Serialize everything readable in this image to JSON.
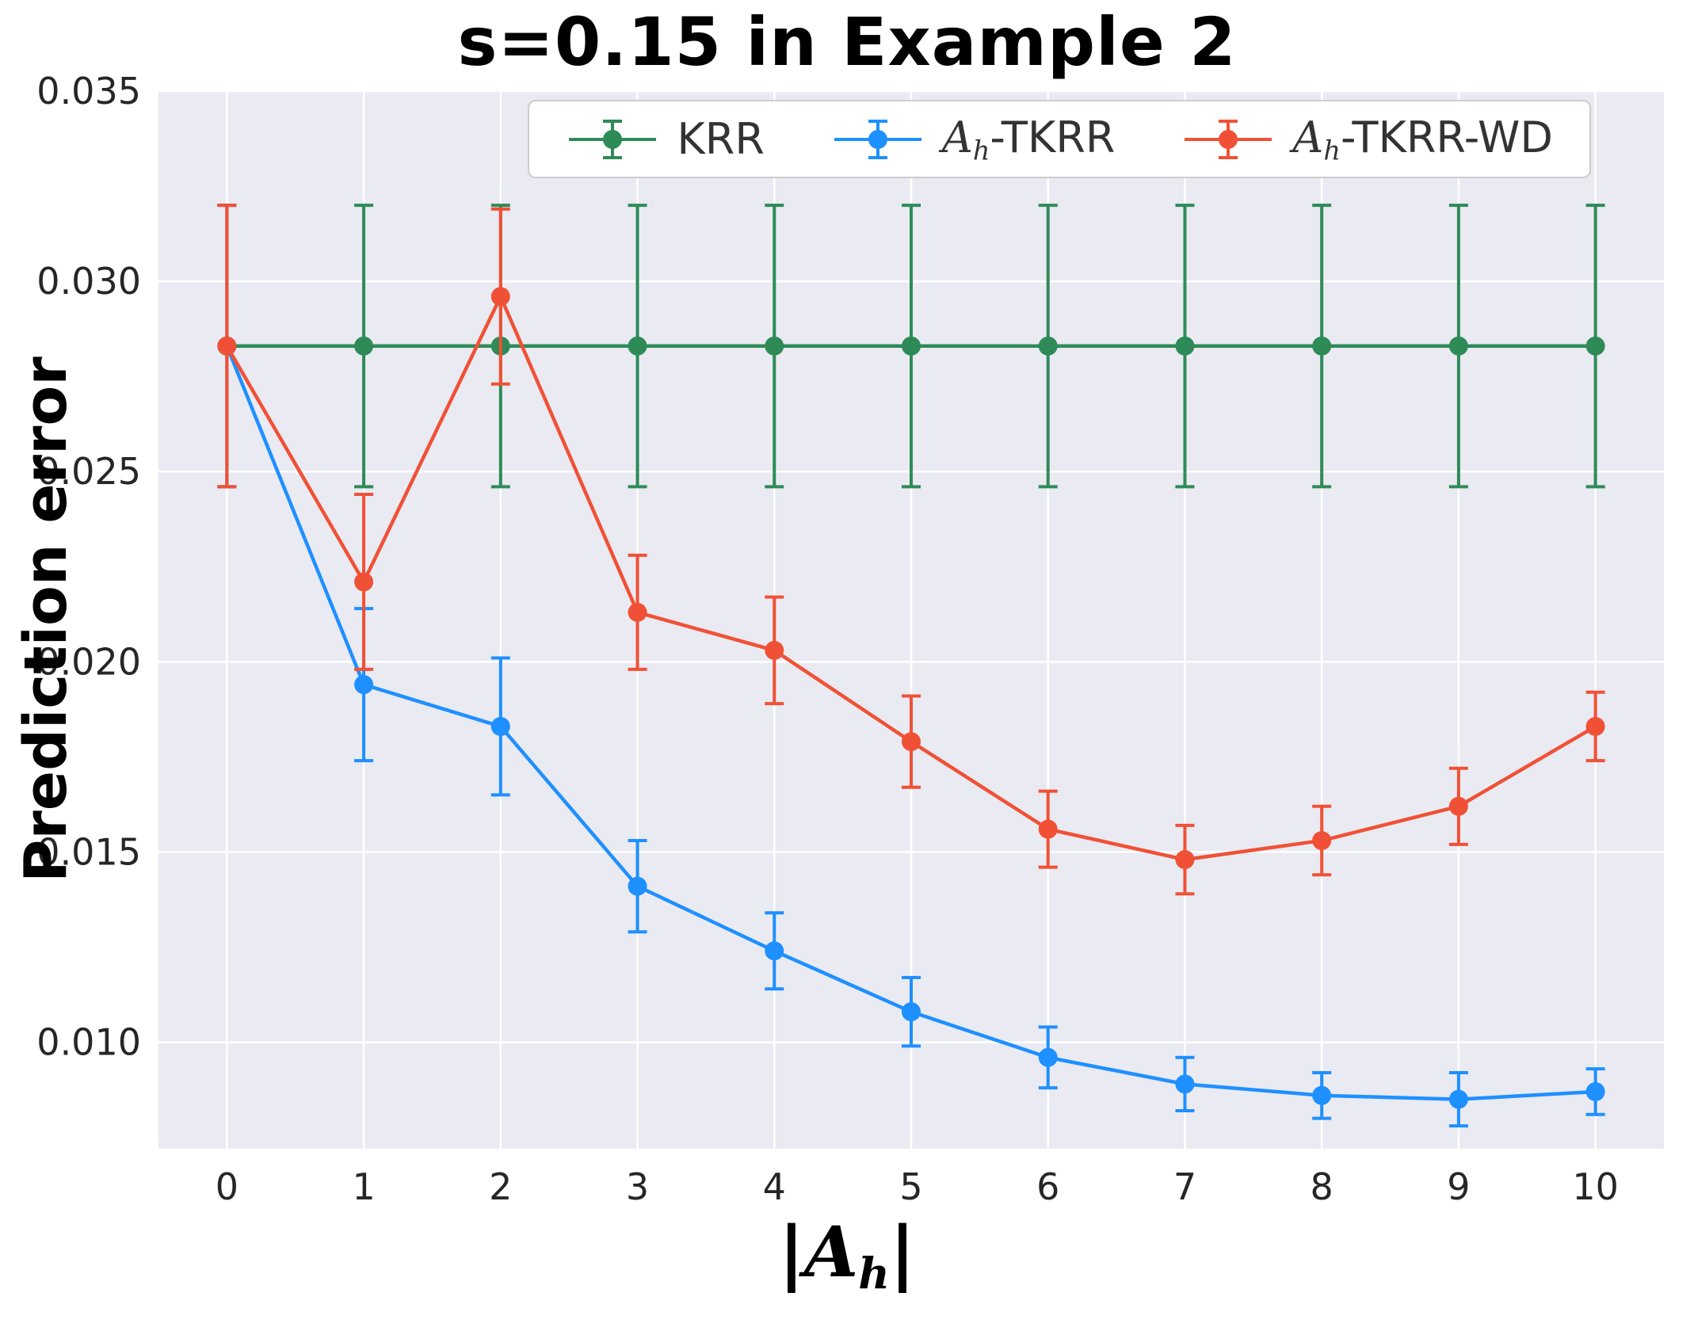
{
  "chart_data": {
    "type": "line",
    "title": "s=0.15 in Example 2",
    "xlabel": "|A_h|",
    "ylabel": "Prediction error",
    "xlabel_parts": {
      "left_bar": "|",
      "script_letter": "A",
      "subscript": "h",
      "right_bar": "|"
    },
    "x": [
      0,
      1,
      2,
      3,
      4,
      5,
      6,
      7,
      8,
      9,
      10
    ],
    "xlim": [
      -0.5,
      10.5
    ],
    "ylim": [
      0.0072,
      0.035
    ],
    "xticks": [
      0,
      1,
      2,
      3,
      4,
      5,
      6,
      7,
      8,
      9,
      10
    ],
    "xtick_labels": [
      "0",
      "1",
      "2",
      "3",
      "4",
      "5",
      "6",
      "7",
      "8",
      "9",
      "10"
    ],
    "yticks": [
      0.01,
      0.015,
      0.02,
      0.025,
      0.03,
      0.035
    ],
    "ytick_labels": [
      "0.010",
      "0.015",
      "0.020",
      "0.025",
      "0.030",
      "0.035"
    ],
    "grid": true,
    "legend_position": "upper right",
    "series": [
      {
        "name": "KRR",
        "color": "#2e8b57",
        "legend": {
          "text": "KRR"
        },
        "values": [
          0.0283,
          0.0283,
          0.0283,
          0.0283,
          0.0283,
          0.0283,
          0.0283,
          0.0283,
          0.0283,
          0.0283,
          0.0283
        ],
        "errors": [
          0.0037,
          0.0037,
          0.0037,
          0.0037,
          0.0037,
          0.0037,
          0.0037,
          0.0037,
          0.0037,
          0.0037,
          0.0037
        ]
      },
      {
        "name": "Ah-TKRR",
        "color": "#1e90ff",
        "legend": {
          "script_letter": "A",
          "subscript": "h",
          "text": "-TKRR"
        },
        "values": [
          0.0283,
          0.0194,
          0.0183,
          0.0141,
          0.0124,
          0.0108,
          0.0096,
          0.0089,
          0.0086,
          0.0085,
          0.0087
        ],
        "errors": [
          0.0037,
          0.002,
          0.0018,
          0.0012,
          0.001,
          0.0009,
          0.0008,
          0.0007,
          0.0006,
          0.0007,
          0.0006
        ]
      },
      {
        "name": "Ah-TKRR-WD",
        "color": "#f05136",
        "legend": {
          "script_letter": "A",
          "subscript": "h",
          "text": "-TKRR-WD"
        },
        "values": [
          0.0283,
          0.0221,
          0.0296,
          0.0213,
          0.0203,
          0.0179,
          0.0156,
          0.0148,
          0.0153,
          0.0162,
          0.0183
        ],
        "errors": [
          0.0037,
          0.0023,
          0.0023,
          0.0015,
          0.0014,
          0.0012,
          0.001,
          0.0009,
          0.0009,
          0.001,
          0.0009
        ]
      }
    ]
  },
  "colors": {
    "figure_bg": "#ffffff",
    "plot_bg": "#eaeaf2",
    "grid": "#ffffff",
    "tick_text": "#262626",
    "legend_border": "#cccccc",
    "legend_text": "#333333"
  }
}
